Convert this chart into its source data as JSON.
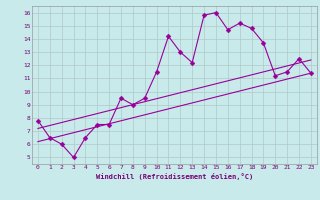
{
  "xlabel": "Windchill (Refroidissement éolien,°C)",
  "bg_color": "#c8eaea",
  "grid_color": "#b0c8c8",
  "line_color": "#990099",
  "text_color": "#770077",
  "xlim": [
    -0.5,
    23.5
  ],
  "ylim": [
    4.5,
    16.5
  ],
  "xticks": [
    0,
    1,
    2,
    3,
    4,
    5,
    6,
    7,
    8,
    9,
    10,
    11,
    12,
    13,
    14,
    15,
    16,
    17,
    18,
    19,
    20,
    21,
    22,
    23
  ],
  "yticks": [
    5,
    6,
    7,
    8,
    9,
    10,
    11,
    12,
    13,
    14,
    15,
    16
  ],
  "line1_x": [
    0,
    1,
    2,
    3,
    4,
    5,
    6,
    7,
    8,
    9,
    10,
    11,
    12,
    13,
    14,
    15,
    16,
    17,
    18,
    19,
    20,
    21,
    22,
    23
  ],
  "line1_y": [
    7.8,
    6.5,
    6.0,
    5.0,
    6.5,
    7.5,
    7.5,
    9.5,
    9.0,
    9.5,
    11.5,
    14.2,
    13.0,
    12.2,
    15.8,
    16.0,
    14.7,
    15.2,
    14.8,
    13.7,
    11.2,
    11.5,
    12.5,
    11.4
  ],
  "line2_x": [
    0,
    23
  ],
  "line2_y": [
    6.2,
    11.4
  ],
  "line3_x": [
    0,
    23
  ],
  "line3_y": [
    7.2,
    12.4
  ]
}
